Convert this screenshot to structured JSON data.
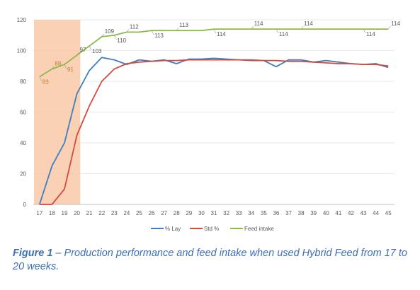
{
  "chart_data": {
    "type": "line",
    "x": [
      17,
      18,
      19,
      20,
      21,
      22,
      23,
      24,
      25,
      26,
      27,
      28,
      29,
      30,
      31,
      32,
      33,
      34,
      35,
      36,
      37,
      38,
      39,
      40,
      41,
      42,
      43,
      44,
      45
    ],
    "ylim": [
      0,
      120
    ],
    "yticks": [
      0,
      20,
      40,
      60,
      80,
      100,
      120
    ],
    "grid": true,
    "legend_position": "bottom",
    "highlight_range": [
      17,
      20
    ],
    "highlight_color": "#f9c9a8",
    "series": [
      {
        "name": "% Lay",
        "color": "#3e7fc1",
        "values": [
          0,
          25,
          40,
          72,
          87,
          95.5,
          94,
          91,
          94,
          93,
          94,
          91.5,
          94.5,
          94.5,
          95,
          94.5,
          94,
          93.5,
          93.5,
          89.5,
          94,
          94,
          92.5,
          93.5,
          92.5,
          91.5,
          91,
          91.5,
          89
        ]
      },
      {
        "name": "Std %",
        "color": "#d34a3f",
        "values": [
          0,
          0,
          10,
          45,
          64,
          80,
          88,
          91.5,
          92.5,
          93,
          93.5,
          93.5,
          94,
          94,
          94,
          94,
          94,
          94,
          93.5,
          93.5,
          93,
          93,
          92.5,
          92,
          91.5,
          91.5,
          91,
          91,
          90
        ]
      },
      {
        "name": "Feed intake",
        "color": "#8dbb4a",
        "values": [
          83,
          88,
          91,
          97,
          103,
          109,
          110,
          112,
          112,
          113,
          113,
          113,
          113,
          113,
          114,
          114,
          114,
          114,
          114,
          114,
          114,
          114,
          114,
          114,
          114,
          114,
          114,
          114,
          114
        ]
      }
    ],
    "data_labels": [
      {
        "x": 17,
        "value": 83,
        "text": "83"
      },
      {
        "x": 18,
        "value": 88,
        "text": "88"
      },
      {
        "x": 19,
        "value": 91,
        "text": "91"
      },
      {
        "x": 20,
        "value": 97,
        "text": "97"
      },
      {
        "x": 21,
        "value": 103,
        "text": "103"
      },
      {
        "x": 22,
        "value": 109,
        "text": "109"
      },
      {
        "x": 23,
        "value": 110,
        "text": "110"
      },
      {
        "x": 24,
        "value": 112,
        "text": "112"
      },
      {
        "x": 26,
        "value": 113,
        "text": "113"
      },
      {
        "x": 28,
        "value": 113,
        "text": "113"
      },
      {
        "x": 31,
        "value": 114,
        "text": "114"
      },
      {
        "x": 34,
        "value": 114,
        "text": "114"
      },
      {
        "x": 36,
        "value": 114,
        "text": "114"
      },
      {
        "x": 38,
        "value": 114,
        "text": "114"
      },
      {
        "x": 43,
        "value": 114,
        "text": "114"
      },
      {
        "x": 45,
        "value": 114,
        "text": "114"
      }
    ]
  },
  "caption": {
    "label": "Figure 1",
    "text": " – Production performance and feed intake when used Hybrid Feed from 17 to 20 weeks."
  }
}
